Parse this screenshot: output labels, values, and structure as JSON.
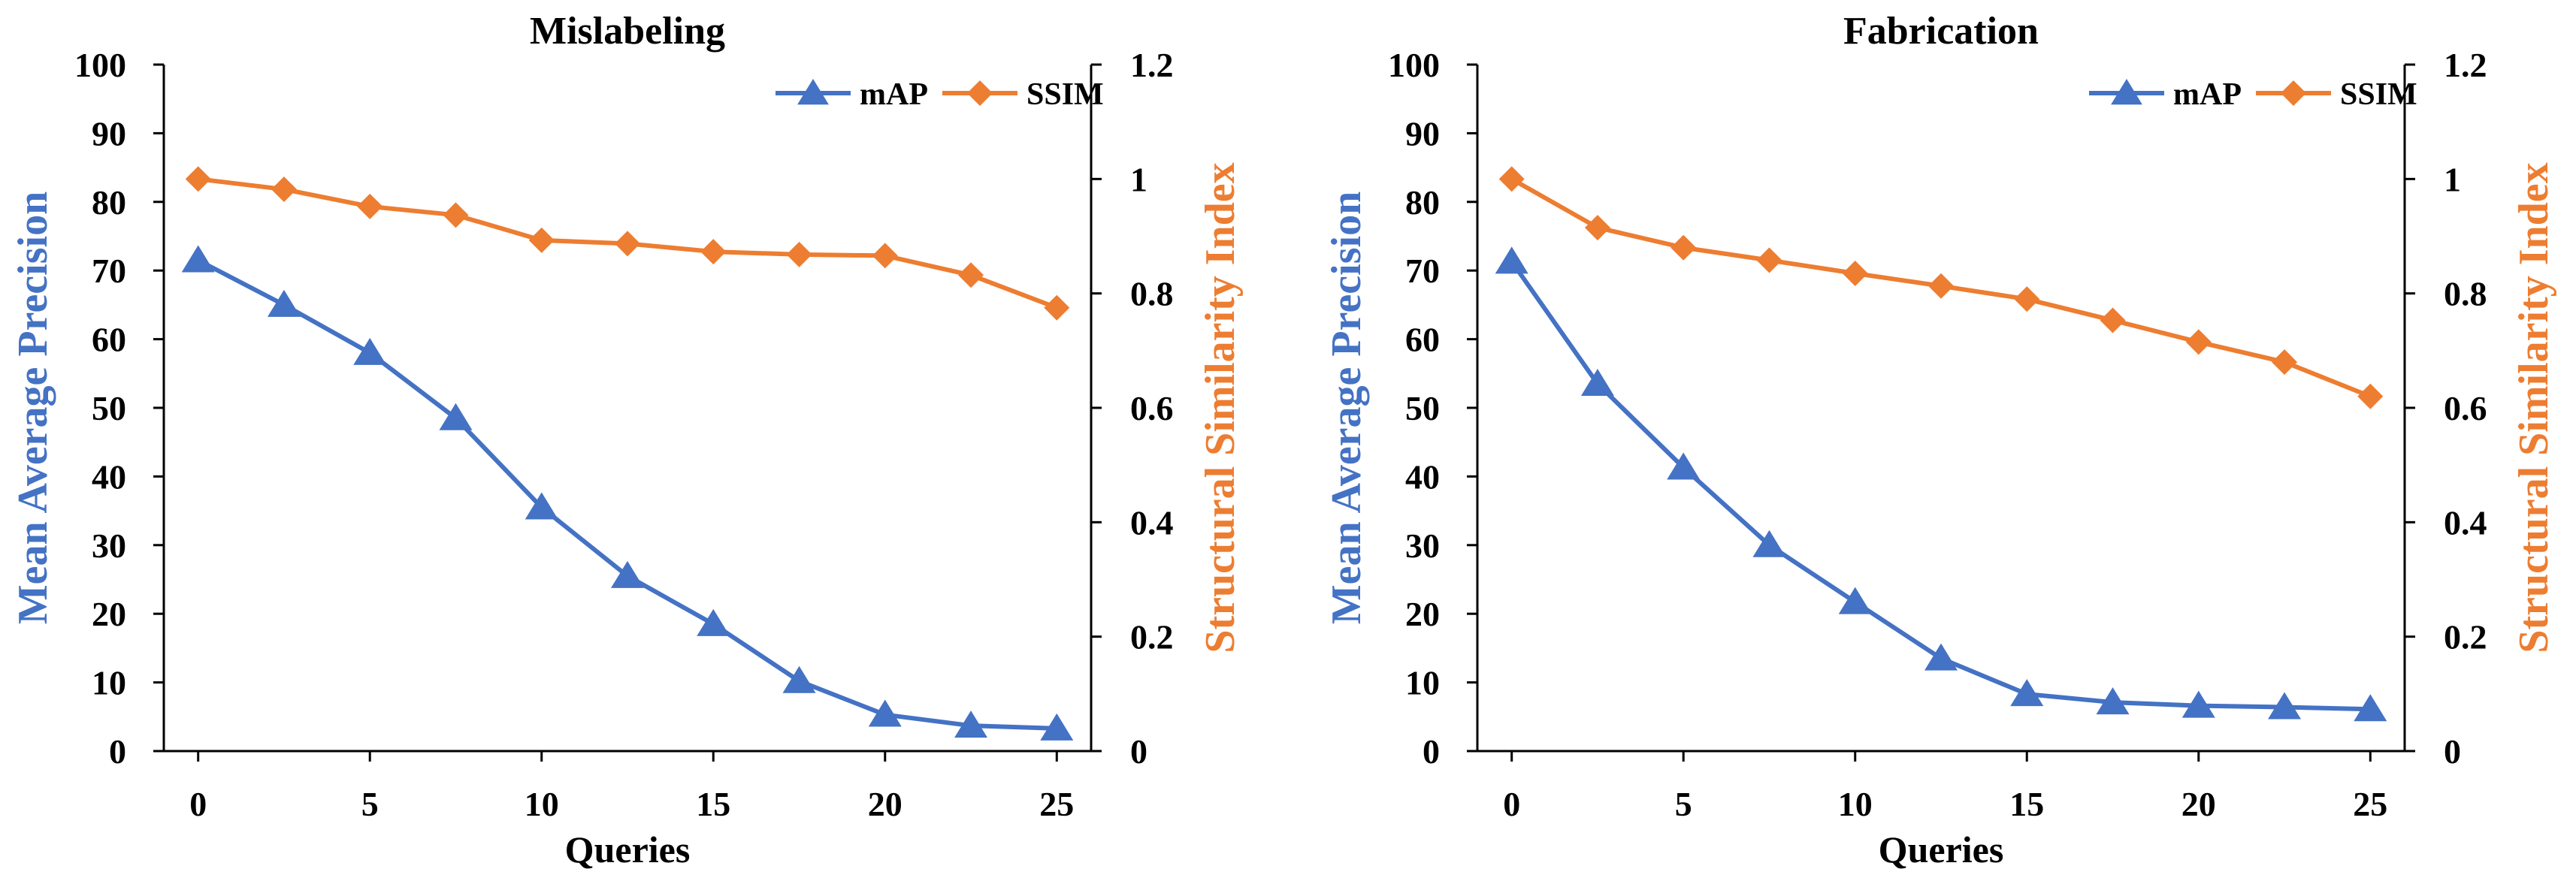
{
  "colors": {
    "map": "#4472C4",
    "ssim": "#ED7D31",
    "axis": "#000000"
  },
  "chart_data": [
    {
      "type": "line",
      "title": "Mislabeling",
      "xlabel": "Queries",
      "ylabel_left": "Mean Average Precision",
      "ylabel_right": "Structural Similarity Index",
      "xlim": [
        -1,
        26
      ],
      "xticks": [
        0,
        5,
        10,
        15,
        20,
        25
      ],
      "ylim_left": [
        0,
        100
      ],
      "yticks_left": [
        0,
        10,
        20,
        30,
        40,
        50,
        60,
        70,
        80,
        90,
        100
      ],
      "ylim_right": [
        0,
        1.2
      ],
      "yticks_right": [
        "0",
        "0.2",
        "0.4",
        "0.6",
        "0.8",
        "1",
        "1.2"
      ],
      "legend_position": "top-right",
      "x": [
        0,
        2.5,
        5,
        7.5,
        10,
        12.5,
        15,
        17.5,
        20,
        22.5,
        25
      ],
      "series": [
        {
          "name": "mAP",
          "axis": "left",
          "marker": "triangle",
          "values": [
            71.5,
            65.0,
            58.0,
            48.5,
            35.5,
            25.5,
            18.5,
            10.2,
            5.3,
            3.7,
            3.3
          ]
        },
        {
          "name": "SSIM",
          "axis": "right",
          "marker": "diamond",
          "values": [
            1.0,
            0.982,
            0.952,
            0.937,
            0.893,
            0.887,
            0.873,
            0.868,
            0.866,
            0.832,
            0.775
          ]
        }
      ]
    },
    {
      "type": "line",
      "title": "Fabrication",
      "xlabel": "Queries",
      "ylabel_left": "Mean Average Precision",
      "ylabel_right": "Structural Similarity Index",
      "xlim": [
        -1,
        26
      ],
      "xticks": [
        0,
        5,
        10,
        15,
        20,
        25
      ],
      "ylim_left": [
        0,
        100
      ],
      "yticks_left": [
        0,
        10,
        20,
        30,
        40,
        50,
        60,
        70,
        80,
        90,
        100
      ],
      "ylim_right": [
        0,
        1.2
      ],
      "yticks_right": [
        "0",
        "0.2",
        "0.4",
        "0.6",
        "0.8",
        "1",
        "1.2"
      ],
      "legend_position": "top-right",
      "x": [
        0,
        2.5,
        5,
        7.5,
        10,
        12.5,
        15,
        17.5,
        20,
        22.5,
        25
      ],
      "series": [
        {
          "name": "mAP",
          "axis": "left",
          "marker": "triangle",
          "values": [
            71.3,
            53.5,
            41.3,
            30.0,
            21.7,
            13.5,
            8.3,
            7.1,
            6.6,
            6.4,
            6.1
          ]
        },
        {
          "name": "SSIM",
          "axis": "right",
          "marker": "diamond",
          "values": [
            1.0,
            0.915,
            0.88,
            0.858,
            0.835,
            0.813,
            0.79,
            0.753,
            0.715,
            0.68,
            0.62
          ]
        }
      ]
    }
  ]
}
